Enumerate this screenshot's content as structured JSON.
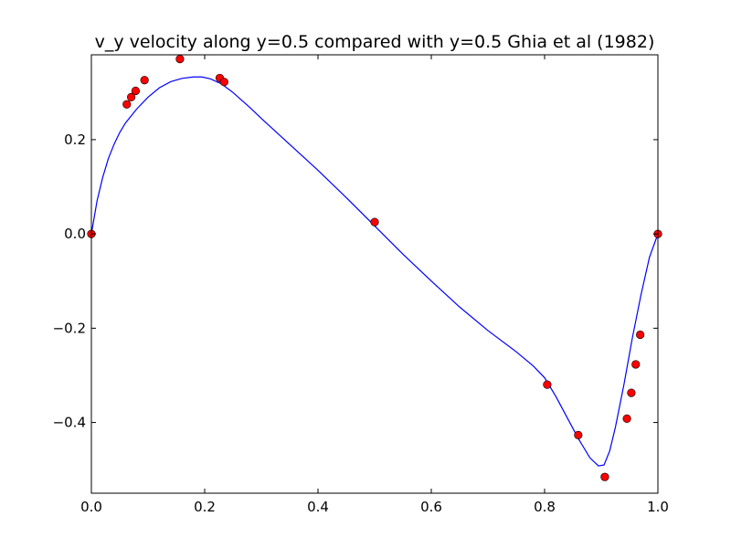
{
  "chart_data": {
    "type": "line",
    "title": "v_y velocity along y=0.5 compared with y=0.5 Ghia et al (1982)",
    "xlabel": "",
    "ylabel": "",
    "xlim": [
      0.0,
      1.0
    ],
    "ylim": [
      -0.55,
      0.38
    ],
    "grid": false,
    "x_ticks": [
      0.0,
      0.2,
      0.4,
      0.6,
      0.8,
      1.0
    ],
    "x_tick_labels": [
      "0.0",
      "0.2",
      "0.4",
      "0.6",
      "0.8",
      "1.0"
    ],
    "y_ticks": [
      -0.4,
      -0.2,
      0.0,
      0.2
    ],
    "y_tick_labels": [
      "−0.4",
      "−0.2",
      "0.0",
      "0.2"
    ],
    "series": [
      {
        "type": "line",
        "color": "#0000ff",
        "x": [
          0.0,
          0.01,
          0.02,
          0.03,
          0.04,
          0.05,
          0.06,
          0.08,
          0.1,
          0.12,
          0.14,
          0.16,
          0.18,
          0.195,
          0.21,
          0.23,
          0.25,
          0.28,
          0.3,
          0.35,
          0.4,
          0.45,
          0.5,
          0.55,
          0.6,
          0.65,
          0.7,
          0.75,
          0.78,
          0.8,
          0.82,
          0.84,
          0.86,
          0.88,
          0.895,
          0.905,
          0.915,
          0.925,
          0.94,
          0.955,
          0.97,
          0.985,
          1.0
        ],
        "y": [
          0.0,
          0.07,
          0.12,
          0.16,
          0.19,
          0.215,
          0.235,
          0.265,
          0.29,
          0.31,
          0.323,
          0.33,
          0.333,
          0.333,
          0.329,
          0.318,
          0.3,
          0.268,
          0.245,
          0.19,
          0.135,
          0.077,
          0.017,
          -0.043,
          -0.1,
          -0.155,
          -0.205,
          -0.25,
          -0.28,
          -0.305,
          -0.345,
          -0.39,
          -0.435,
          -0.475,
          -0.492,
          -0.49,
          -0.46,
          -0.41,
          -0.32,
          -0.22,
          -0.13,
          -0.05,
          0.0
        ]
      },
      {
        "type": "scatter",
        "color": "#ff0000",
        "x": [
          0.0,
          0.0625,
          0.0703,
          0.0781,
          0.0938,
          0.1563,
          0.2266,
          0.2344,
          0.5,
          0.8047,
          0.8594,
          0.9063,
          0.9453,
          0.9531,
          0.9609,
          0.9688,
          1.0
        ],
        "y": [
          0.0,
          0.27485,
          0.29012,
          0.30353,
          0.32627,
          0.37095,
          0.33075,
          0.32235,
          0.02526,
          -0.31966,
          -0.42665,
          -0.5155,
          -0.39188,
          -0.33714,
          -0.27669,
          -0.21388,
          0.0
        ]
      }
    ]
  }
}
